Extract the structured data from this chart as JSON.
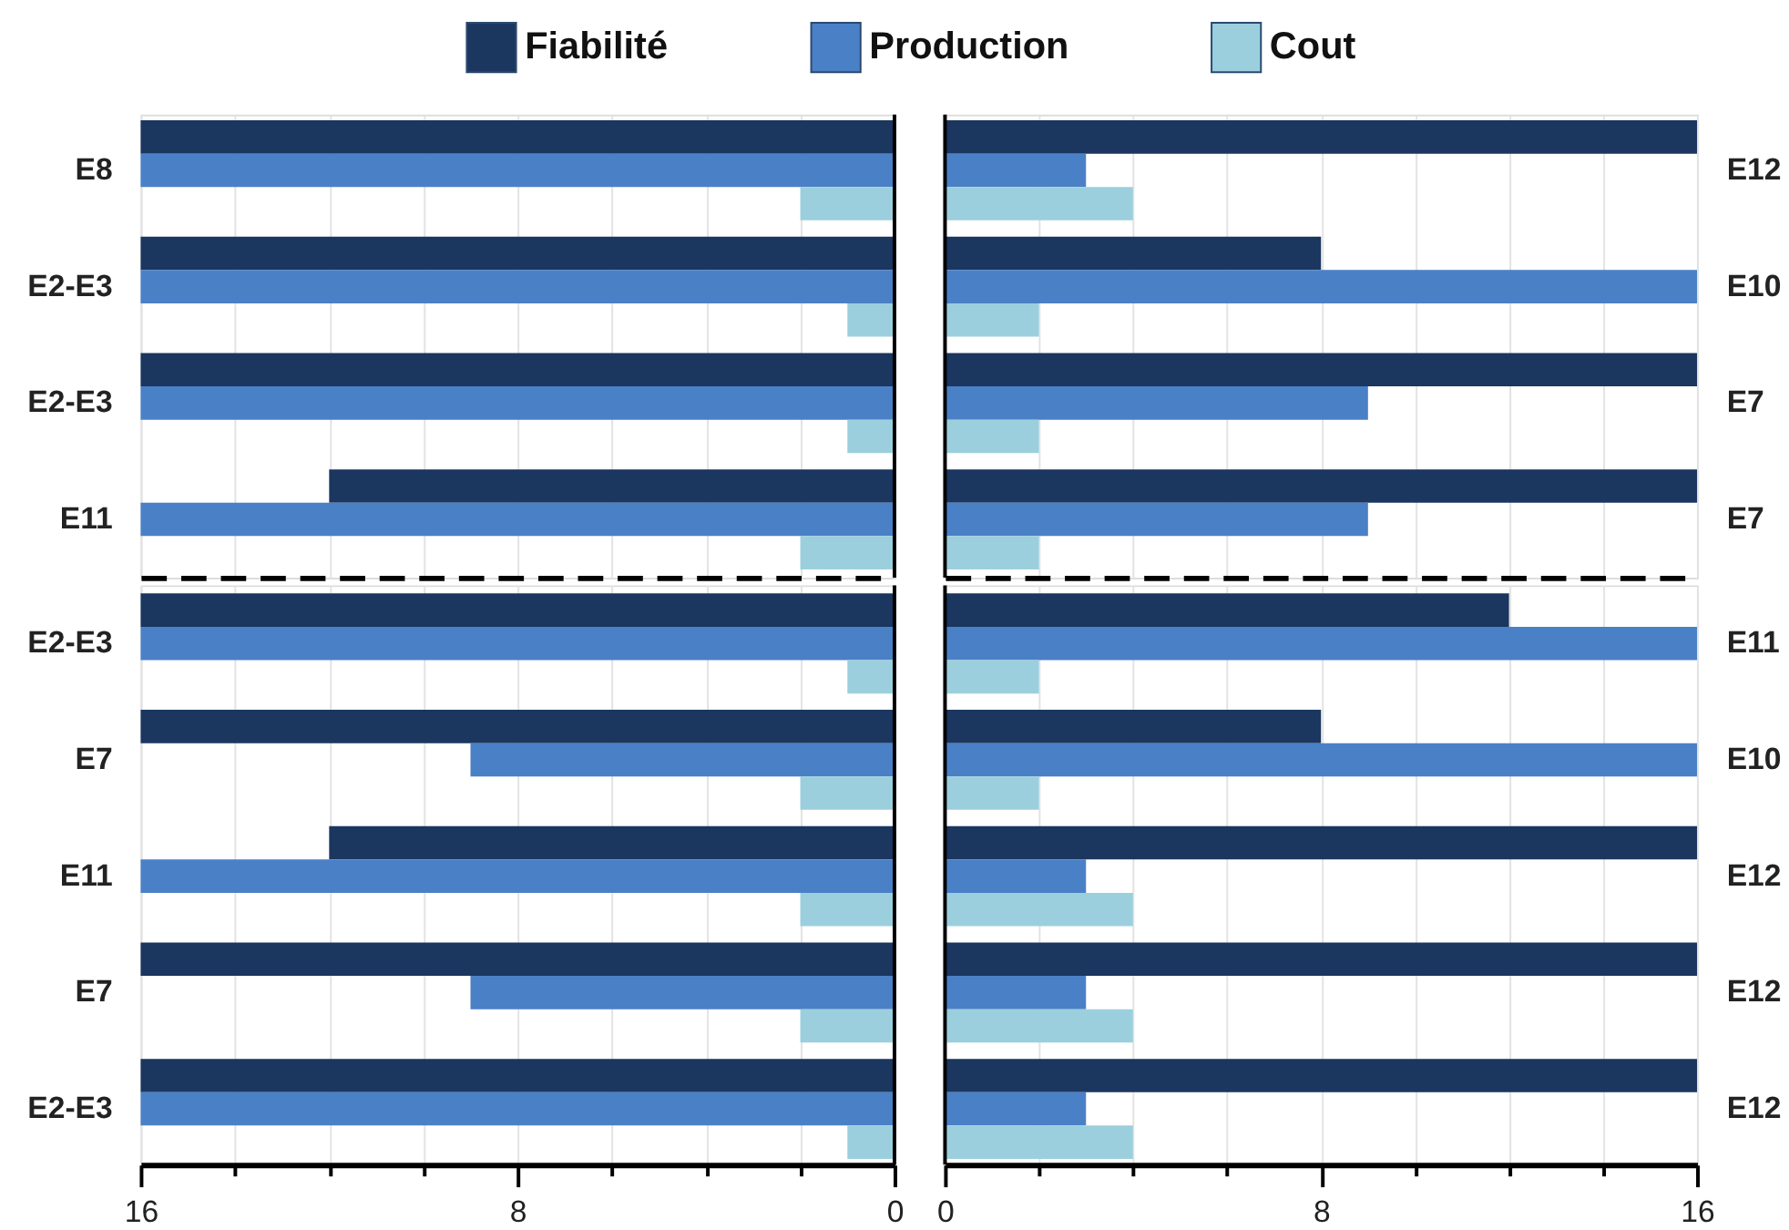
{
  "chart_data": [
    {
      "type": "bar",
      "orientation": "horizontal",
      "categories": [
        "E8",
        "E2-E3",
        "E2-E3",
        "E11"
      ],
      "series": [
        {
          "name": "Fiabilité",
          "color": "#1b365f",
          "values": [
            16,
            16,
            16,
            12
          ]
        },
        {
          "name": "Production",
          "color": "#4a80c6",
          "values": [
            16,
            16,
            16,
            16
          ]
        },
        {
          "name": "Cout",
          "color": "#9ccfdd",
          "values": [
            2,
            1,
            1,
            2
          ]
        }
      ],
      "xlim": [
        16,
        0
      ],
      "xticks": [
        16,
        14,
        12,
        10,
        8,
        6,
        4,
        2,
        0
      ],
      "grid": "x",
      "legend": "top",
      "tick_labels": "y"
    },
    {
      "type": "bar",
      "orientation": "horizontal",
      "categories": [
        "E12",
        "E10",
        "E7",
        "E7"
      ],
      "series": [
        {
          "name": "Fiabilité",
          "color": "#1b365f",
          "values": [
            16,
            8,
            16,
            16
          ]
        },
        {
          "name": "Production",
          "color": "#4a80c6",
          "values": [
            3,
            16,
            9,
            9
          ]
        },
        {
          "name": "Cout",
          "color": "#9ccfdd",
          "values": [
            4,
            2,
            2,
            2
          ]
        }
      ],
      "xlim": [
        0,
        16
      ],
      "xticks": [
        0,
        2,
        4,
        6,
        8,
        10,
        12,
        14,
        16
      ],
      "grid": "x",
      "legend": "top",
      "tick_labels": "y"
    },
    {
      "type": "bar",
      "orientation": "horizontal",
      "categories": [
        "E2-E3",
        "E7",
        "E11",
        "E7",
        "E2-E3"
      ],
      "series": [
        {
          "name": "Fiabilité",
          "color": "#1b365f",
          "values": [
            16,
            16,
            12,
            16,
            16
          ]
        },
        {
          "name": "Production",
          "color": "#4a80c6",
          "values": [
            16,
            9,
            16,
            9,
            16
          ]
        },
        {
          "name": "Cout",
          "color": "#9ccfdd",
          "values": [
            1,
            2,
            2,
            2,
            1
          ]
        }
      ],
      "xlim": [
        16,
        0
      ],
      "xticks": [
        16,
        {
          "value": 14,
          "label": null
        },
        {
          "value": 12,
          "label": null
        },
        {
          "value": 10,
          "label": null
        },
        8,
        {
          "value": 6,
          "label": null
        },
        {
          "value": 4,
          "label": null
        },
        {
          "value": 2,
          "label": null
        },
        0
      ],
      "grid": "x",
      "legend": "top"
    },
    {
      "type": "bar",
      "orientation": "horizontal",
      "categories": [
        "E11",
        "E10",
        "E12",
        "E12",
        "E12"
      ],
      "series": [
        {
          "name": "Fiabilité",
          "color": "#1b365f",
          "values": [
            12,
            8,
            16,
            16,
            16
          ]
        },
        {
          "name": "Production",
          "color": "#4a80c6",
          "values": [
            16,
            16,
            3,
            3,
            3
          ]
        },
        {
          "name": "Cout",
          "color": "#9ccfdd",
          "values": [
            2,
            2,
            4,
            4,
            4
          ]
        }
      ],
      "xlim": [
        0,
        16
      ],
      "xticks": [
        0,
        {
          "value": 2,
          "label": null
        },
        {
          "value": 4,
          "label": null
        },
        {
          "value": 6,
          "label": null
        },
        8,
        {
          "value": 10,
          "label": null
        },
        {
          "value": 12,
          "label": null
        },
        {
          "value": 14,
          "label": null
        },
        16
      ],
      "grid": "x",
      "legend": "top"
    }
  ]
}
